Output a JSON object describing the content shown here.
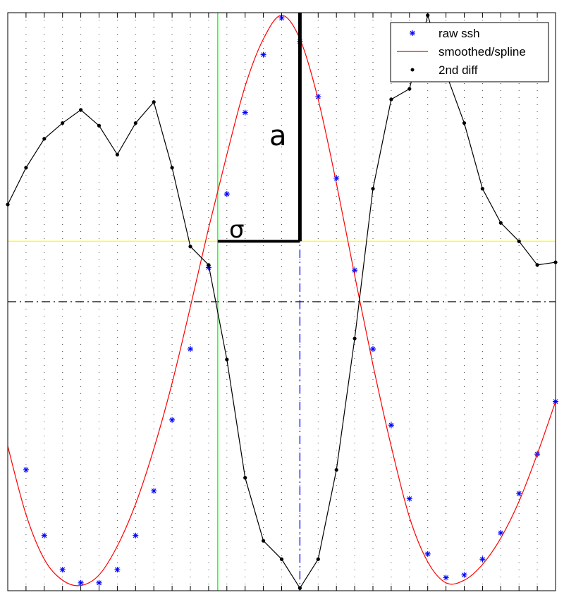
{
  "chart_data": {
    "type": "line",
    "title": "",
    "xlabel": "",
    "ylabel": "",
    "xlim": [
      0,
      30
    ],
    "ylim": [
      -1.1,
      1.1
    ],
    "grid": true,
    "legend_position": "top-right",
    "series": [
      {
        "name": "raw ssh",
        "style": "markers",
        "marker": "star",
        "color": "#0000ff",
        "x": [
          1,
          2,
          3,
          4,
          5,
          6,
          7,
          8,
          9,
          10,
          11,
          12,
          13,
          14,
          15,
          16,
          17,
          18,
          19,
          20,
          21,
          22,
          23,
          24,
          25,
          26,
          27,
          28,
          29,
          30
        ],
        "y": [
          -0.64,
          -0.89,
          -1.02,
          -1.07,
          -1.07,
          -1.02,
          -0.89,
          -0.72,
          -0.45,
          -0.18,
          0.13,
          0.41,
          0.72,
          0.94,
          1.08,
          0.99,
          0.78,
          0.47,
          0.12,
          -0.18,
          -0.47,
          -0.75,
          -0.96,
          -1.05,
          -1.04,
          -0.98,
          -0.88,
          -0.73,
          -0.58,
          -0.38
        ]
      },
      {
        "name": "smoothed/spline",
        "style": "line",
        "color": "#ff0000",
        "x": [
          0,
          1,
          2,
          3,
          4,
          5,
          6,
          7,
          8,
          9,
          10,
          11,
          12,
          13,
          14,
          15,
          16,
          17,
          18,
          19,
          20,
          21,
          22,
          23,
          24,
          25,
          26,
          27,
          28,
          29,
          30
        ],
        "y": [
          -0.55,
          -0.81,
          -0.98,
          -1.06,
          -1.08,
          -1.04,
          -0.93,
          -0.77,
          -0.56,
          -0.31,
          -0.02,
          0.28,
          0.56,
          0.82,
          1.0,
          1.09,
          1.0,
          0.77,
          0.45,
          0.1,
          -0.24,
          -0.55,
          -0.82,
          -0.99,
          -1.07,
          -1.06,
          -1.0,
          -0.9,
          -0.76,
          -0.58,
          -0.38
        ]
      },
      {
        "name": "2nd diff",
        "style": "line+dots",
        "color": "#000000",
        "x": [
          0,
          1,
          2,
          3,
          4,
          5,
          6,
          7,
          8,
          9,
          10,
          11,
          12,
          13,
          14,
          15,
          16,
          17,
          18,
          19,
          20,
          21,
          22,
          23,
          24,
          25,
          26,
          27,
          28,
          29,
          30
        ],
        "y": [
          0.37,
          0.51,
          0.62,
          0.68,
          0.73,
          0.67,
          0.56,
          0.68,
          0.76,
          0.51,
          0.21,
          0.14,
          -0.22,
          -0.67,
          -0.91,
          -0.98,
          -1.09,
          -0.98,
          -0.64,
          -0.14,
          0.43,
          0.77,
          0.81,
          1.09,
          0.87,
          0.68,
          0.43,
          0.3,
          0.23,
          0.14,
          0.15
        ]
      }
    ],
    "reference_lines": [
      {
        "orientation": "horizontal",
        "y": 0.23,
        "color": "#ffff00",
        "style": "solid"
      },
      {
        "orientation": "horizontal",
        "y": 0.0,
        "color": "#000000",
        "style": "dash-dot"
      },
      {
        "orientation": "vertical",
        "x": 11.5,
        "color": "#00ff00",
        "style": "solid"
      },
      {
        "orientation": "vertical",
        "x": 16.0,
        "color": "#0000ff",
        "style": "dash-dot"
      }
    ],
    "annotations": [
      {
        "text": "a",
        "kind": "vertical-bar",
        "x": 16.0,
        "y_from": 0.23,
        "y_to": 1.1
      },
      {
        "text": "σ",
        "kind": "horizontal-bar",
        "y": 0.23,
        "x_from": 11.5,
        "x_to": 16.0
      }
    ],
    "legend": [
      "raw ssh",
      "smoothed/spline",
      "2nd diff"
    ]
  }
}
